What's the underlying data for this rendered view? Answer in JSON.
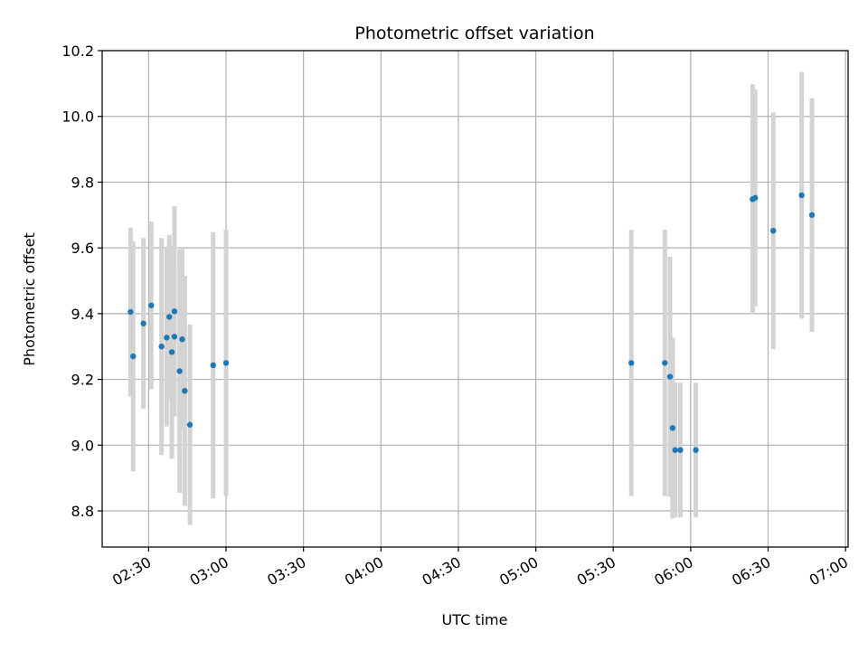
{
  "chart_data": {
    "type": "scatter",
    "title": "Photometric offset variation",
    "xlabel": "UTC time",
    "ylabel": "Photometric offset",
    "x_ticks": [
      "02:30",
      "03:00",
      "03:30",
      "04:00",
      "04:30",
      "05:00",
      "05:30",
      "06:00",
      "06:30",
      "07:00"
    ],
    "y_ticks": [
      "8.8",
      "9.0",
      "9.2",
      "9.4",
      "9.6",
      "9.8",
      "10.0",
      "10.2"
    ],
    "xlim": [
      "02:12",
      "07:01"
    ],
    "ylim": [
      8.69,
      10.2
    ],
    "grid": true,
    "colors": {
      "point": "#1f77b4",
      "errorbar": "#d3d3d3",
      "grid": "#b0b0b0"
    },
    "points": [
      {
        "x": "02:23",
        "y": 9.405,
        "err": 0.257
      },
      {
        "x": "02:24",
        "y": 9.27,
        "err": 0.35
      },
      {
        "x": "02:28",
        "y": 9.37,
        "err": 0.26
      },
      {
        "x": "02:31",
        "y": 9.425,
        "err": 0.255
      },
      {
        "x": "02:35",
        "y": 9.3,
        "err": 0.33
      },
      {
        "x": "02:37",
        "y": 9.327,
        "err": 0.27
      },
      {
        "x": "02:38",
        "y": 9.39,
        "err": 0.25
      },
      {
        "x": "02:39",
        "y": 9.283,
        "err": 0.325
      },
      {
        "x": "02:40",
        "y": 9.33,
        "err": 0.21
      },
      {
        "x": "02:40",
        "y": 9.407,
        "err": 0.32
      },
      {
        "x": "02:42",
        "y": 9.225,
        "err": 0.37
      },
      {
        "x": "02:43",
        "y": 9.322,
        "err": 0.275
      },
      {
        "x": "02:44",
        "y": 9.165,
        "err": 0.35
      },
      {
        "x": "02:46",
        "y": 9.062,
        "err": 0.305
      },
      {
        "x": "02:55",
        "y": 9.243,
        "err": 0.405
      },
      {
        "x": "03:00",
        "y": 9.25,
        "err": 0.405
      },
      {
        "x": "05:37",
        "y": 9.25,
        "err": 0.405
      },
      {
        "x": "05:50",
        "y": 9.25,
        "err": 0.405
      },
      {
        "x": "05:52",
        "y": 9.208,
        "err": 0.365
      },
      {
        "x": "05:53",
        "y": 9.052,
        "err": 0.275
      },
      {
        "x": "05:54",
        "y": 8.985,
        "err": 0.205
      },
      {
        "x": "05:56",
        "y": 8.985,
        "err": 0.205
      },
      {
        "x": "06:02",
        "y": 8.985,
        "err": 0.205
      },
      {
        "x": "06:24",
        "y": 9.748,
        "err": 0.35
      },
      {
        "x": "06:25",
        "y": 9.752,
        "err": 0.33
      },
      {
        "x": "06:32",
        "y": 9.652,
        "err": 0.36
      },
      {
        "x": "06:43",
        "y": 9.76,
        "err": 0.375
      },
      {
        "x": "06:47",
        "y": 9.7,
        "err": 0.355
      }
    ]
  }
}
